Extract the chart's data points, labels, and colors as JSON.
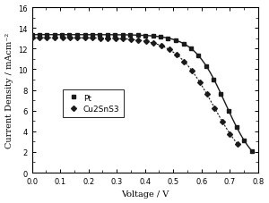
{
  "title": "",
  "xlabel": "Voltage / V",
  "ylabel": "Current Density / mAcm⁻²",
  "xlim": [
    0.0,
    0.8
  ],
  "ylim": [
    0,
    16
  ],
  "yticks": [
    0,
    2,
    4,
    6,
    8,
    10,
    12,
    14,
    16
  ],
  "xticks": [
    0.0,
    0.1,
    0.2,
    0.3,
    0.4,
    0.5,
    0.6,
    0.7,
    0.8
  ],
  "legend_labels": [
    "Pt",
    "Cu2SnS3"
  ],
  "color": "#1a1a1a",
  "background_color": "#ffffff",
  "Pt_jsc": 13.35,
  "Pt_voc": 0.778,
  "Pt_n": 14.0,
  "Cu2SnS3_jsc": 13.05,
  "Cu2SnS3_voc": 0.728,
  "Cu2SnS3_n": 11.0,
  "n_markers_pt": 30,
  "n_markers_cu": 28
}
